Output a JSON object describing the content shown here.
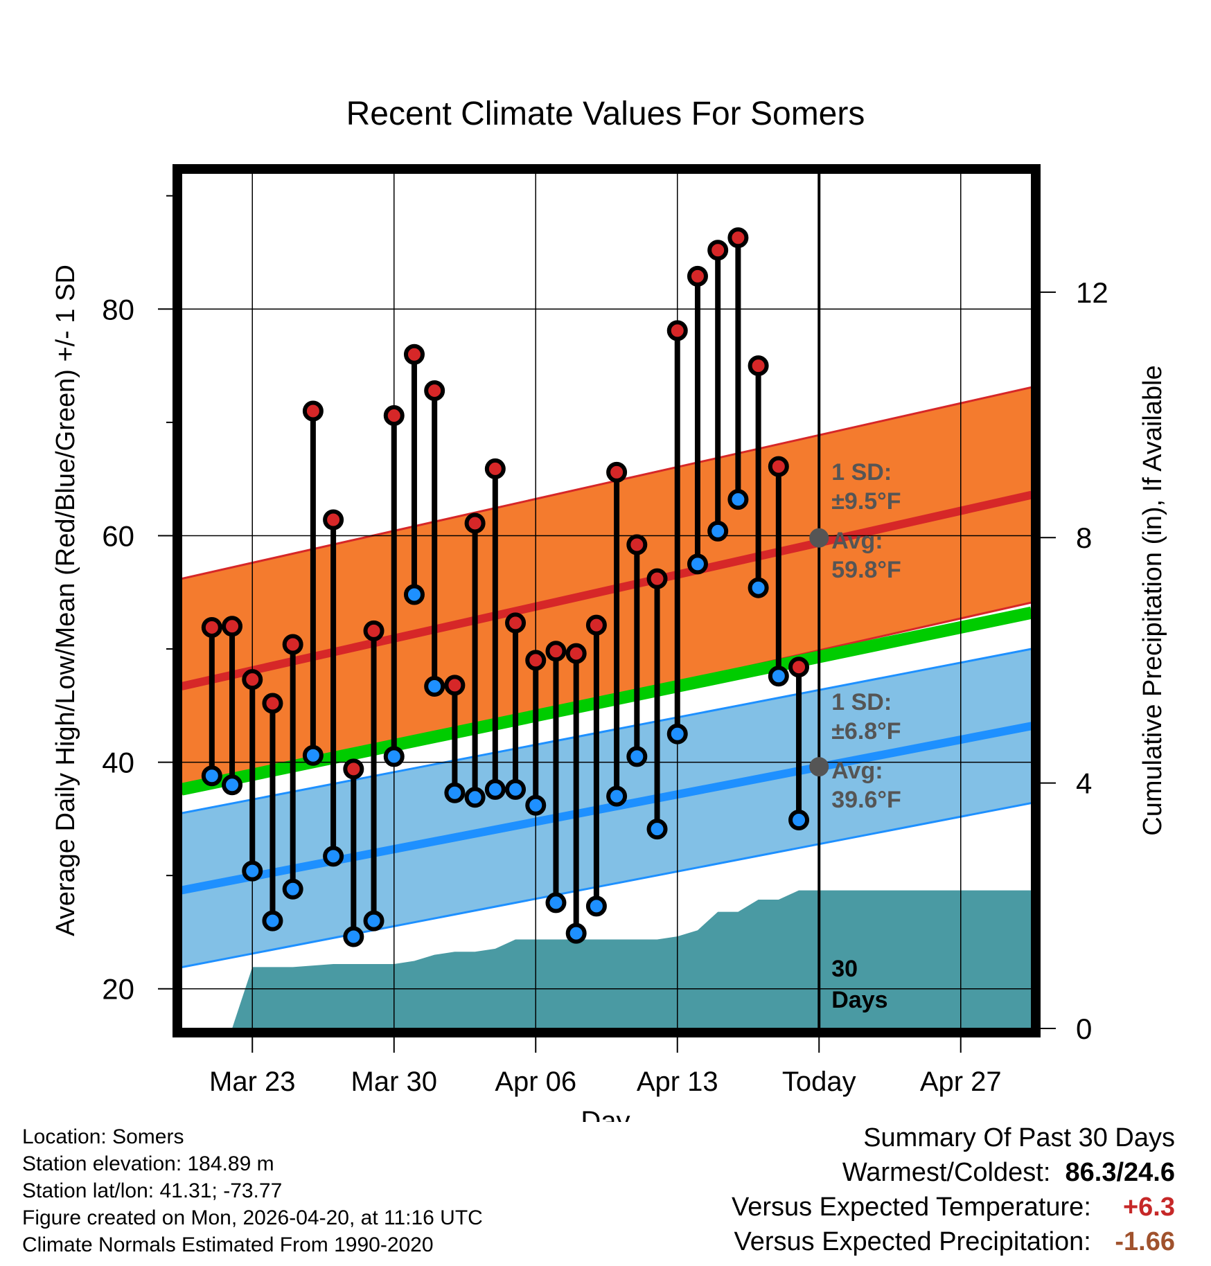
{
  "chart_data": {
    "type": "line",
    "title": "Recent Climate Values For Somers",
    "xlabel": "Day",
    "ylabel": "Average Daily High/Low/Mean (Red/Blue/Green) +/- 1 SD",
    "y2label": "Cumulative Precipitation (in), If Available",
    "x_range": [
      -3.5,
      38.5
    ],
    "ylim": [
      16.5,
      92
    ],
    "y_ticks": [
      20,
      40,
      60,
      80
    ],
    "y_minor_ticks": [
      30,
      50,
      70,
      90
    ],
    "y2lim": [
      0,
      13.94
    ],
    "y2_ticks": [
      0,
      4,
      8,
      12
    ],
    "x_ticks": [
      {
        "day": 0,
        "label": "Mar 23"
      },
      {
        "day": 7,
        "label": "Mar 30"
      },
      {
        "day": 14,
        "label": "Apr 06"
      },
      {
        "day": 21,
        "label": "Apr 13"
      },
      {
        "day": 28,
        "label": "Today"
      },
      {
        "day": 35,
        "label": "Apr 27"
      }
    ],
    "today_day": 28,
    "daily": {
      "days": [
        -2,
        -1,
        0,
        1,
        2,
        3,
        4,
        5,
        6,
        7,
        8,
        9,
        10,
        11,
        12,
        13,
        14,
        15,
        16,
        17,
        18,
        19,
        20,
        21,
        22,
        23,
        24,
        25,
        26,
        27
      ],
      "highs": [
        51.9,
        52.0,
        47.3,
        45.2,
        50.4,
        71.0,
        61.4,
        39.4,
        51.6,
        70.6,
        76.0,
        72.8,
        46.8,
        61.1,
        65.9,
        52.3,
        49.0,
        49.8,
        49.6,
        52.1,
        65.6,
        59.2,
        56.2,
        78.1,
        82.9,
        85.2,
        86.3,
        75.0,
        66.1,
        48.4
      ],
      "lows": [
        38.8,
        38.0,
        30.4,
        26.0,
        28.8,
        40.6,
        31.7,
        24.6,
        26.0,
        40.5,
        54.8,
        46.7,
        37.3,
        36.9,
        37.6,
        37.6,
        36.2,
        27.6,
        24.9,
        27.3,
        37.0,
        40.5,
        34.1,
        42.5,
        57.5,
        60.4,
        63.2,
        55.4,
        47.6,
        34.9
      ]
    },
    "normals": {
      "days": [
        -3.5,
        38.5
      ],
      "high_avg": [
        46.7,
        63.6
      ],
      "high_sd": 9.5,
      "mean_avg": [
        37.6,
        53.2
      ],
      "low_avg": [
        28.7,
        43.2
      ],
      "low_sd": 6.8
    },
    "precip": {
      "days": [
        -3.5,
        -1,
        0,
        2,
        4,
        5,
        6,
        7,
        8,
        9,
        10,
        11,
        12,
        13,
        14,
        15,
        16,
        17,
        18,
        19,
        20,
        21,
        22,
        23,
        24,
        25,
        26,
        27,
        38.5
      ],
      "cumulative": [
        0,
        0,
        1.0,
        1.0,
        1.05,
        1.05,
        1.05,
        1.05,
        1.1,
        1.2,
        1.25,
        1.25,
        1.3,
        1.45,
        1.45,
        1.45,
        1.45,
        1.45,
        1.45,
        1.45,
        1.45,
        1.5,
        1.6,
        1.9,
        1.9,
        2.1,
        2.1,
        2.25,
        2.25
      ]
    },
    "annotations": {
      "high_sd_label": "1 SD:",
      "high_sd_value": "±9.5°F",
      "high_avg_label": "Avg:",
      "high_avg_value": "59.8°F",
      "high_avg": 59.8,
      "low_sd_label": "1 SD:",
      "low_sd_value": "±6.8°F",
      "low_avg_label": "Avg:",
      "low_avg_value": "39.6°F",
      "low_avg": 39.6,
      "precip_days_1": "30",
      "precip_days_2": "Days"
    },
    "colors": {
      "high": "#d62728",
      "high_band": "#f47b2e",
      "mean": "#00cc00",
      "low": "#1e90ff",
      "low_band": "#82c0e6",
      "precip": "#4a9aa3",
      "annotation": "#555555"
    }
  },
  "footer": {
    "location": "Location: Somers",
    "elevation": "Station elevation: 184.89 m",
    "latlon": "Station lat/lon: 41.31; -73.77",
    "created": "Figure created on Mon, 2026-04-20, at 11:16 UTC",
    "normals": "Climate Normals Estimated From 1990-2020"
  },
  "summary": {
    "title": "Summary Of Past 30 Days",
    "warm_cold_label": "Warmest/Coldest:",
    "warm_cold_value": "86.3/24.6",
    "temp_label": "Versus Expected Temperature:",
    "temp_value": "+6.3",
    "precip_label": "Versus Expected Precipitation:",
    "precip_value": "-1.66"
  }
}
